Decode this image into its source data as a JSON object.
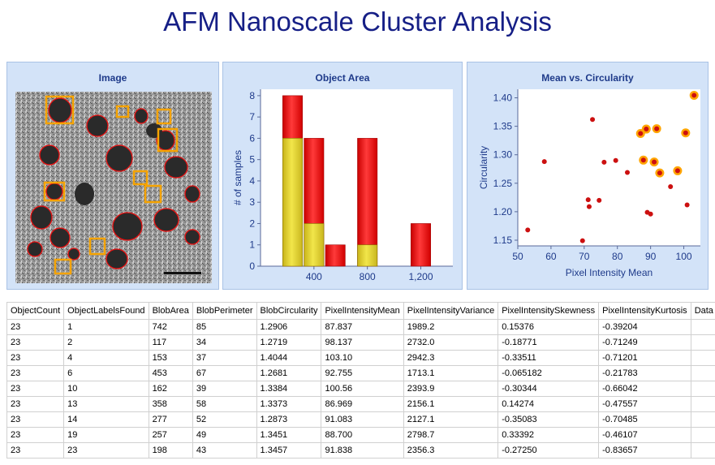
{
  "title": "AFM Nanoscale Cluster Analysis",
  "panels": {
    "image": {
      "title": "Image"
    },
    "object_area": {
      "title": "Object Area"
    },
    "mean_circ": {
      "title": "Mean vs. Circularity"
    }
  },
  "colors": {
    "title": "#161f86",
    "panel_bg": "#d3e3f8",
    "bar_red": "#ff2a2a",
    "bar_yellow": "#e0cf2a",
    "point_red": "#cc1010",
    "highlight": "#ffa500"
  },
  "chart_data": [
    {
      "type": "bar",
      "title": "Object Area",
      "xlabel": "",
      "ylabel": "# of samples",
      "x_ticks": [
        "400",
        "800",
        "1,200"
      ],
      "y_ticks": [
        "0",
        "1",
        "2",
        "3",
        "4",
        "5",
        "6",
        "7",
        "8"
      ],
      "ylim": [
        0,
        8.3
      ],
      "xlim": [
        0,
        1440
      ],
      "bin_width": 160,
      "bins": [
        {
          "center": 240,
          "total": 8,
          "selected": 6
        },
        {
          "center": 400,
          "total": 6,
          "selected": 2
        },
        {
          "center": 560,
          "total": 1,
          "selected": 0
        },
        {
          "center": 800,
          "total": 6,
          "selected": 1
        },
        {
          "center": 1200,
          "total": 2,
          "selected": 0
        }
      ],
      "series": [
        {
          "name": "",
          "stacked_segments": [
            "selected",
            "other"
          ]
        }
      ]
    },
    {
      "type": "scatter",
      "title": "Mean vs. Circularity",
      "xlabel": "Pixel Intensity Mean",
      "ylabel": "Circularity",
      "x_ticks": [
        "50",
        "60",
        "70",
        "80",
        "90",
        "100"
      ],
      "y_ticks": [
        "1.15",
        "1.20",
        "1.25",
        "1.30",
        "1.35",
        "1.40"
      ],
      "xlim": [
        50,
        105
      ],
      "ylim": [
        1.14,
        1.415
      ],
      "points": [
        {
          "x": 53.0,
          "y": 1.168,
          "hl": false
        },
        {
          "x": 58.0,
          "y": 1.288,
          "hl": false
        },
        {
          "x": 69.5,
          "y": 1.149,
          "hl": false
        },
        {
          "x": 71.2,
          "y": 1.221,
          "hl": false
        },
        {
          "x": 71.5,
          "y": 1.209,
          "hl": false
        },
        {
          "x": 72.5,
          "y": 1.362,
          "hl": false
        },
        {
          "x": 74.5,
          "y": 1.22,
          "hl": false
        },
        {
          "x": 76.0,
          "y": 1.287,
          "hl": false
        },
        {
          "x": 79.5,
          "y": 1.29,
          "hl": false
        },
        {
          "x": 83.0,
          "y": 1.269,
          "hl": false
        },
        {
          "x": 89.0,
          "y": 1.199,
          "hl": false
        },
        {
          "x": 90.0,
          "y": 1.196,
          "hl": false
        },
        {
          "x": 96.0,
          "y": 1.244,
          "hl": false
        },
        {
          "x": 101.0,
          "y": 1.212,
          "hl": false
        },
        {
          "x": 86.969,
          "y": 1.3373,
          "hl": true
        },
        {
          "x": 87.837,
          "y": 1.2906,
          "hl": true
        },
        {
          "x": 88.7,
          "y": 1.3451,
          "hl": true
        },
        {
          "x": 91.083,
          "y": 1.2873,
          "hl": true
        },
        {
          "x": 91.838,
          "y": 1.3457,
          "hl": true
        },
        {
          "x": 92.755,
          "y": 1.2681,
          "hl": true
        },
        {
          "x": 98.137,
          "y": 1.2719,
          "hl": true
        },
        {
          "x": 100.56,
          "y": 1.3384,
          "hl": true
        },
        {
          "x": 103.1,
          "y": 1.4044,
          "hl": true
        }
      ]
    }
  ],
  "table": {
    "headers": [
      "ObjectCount",
      "ObjectLabelsFound",
      "BlobArea",
      "BlobPerimeter",
      "BlobCircularity",
      "PixelIntensityMean",
      "PixelIntensityVariance",
      "PixelIntensitySkewness",
      "PixelIntensityKurtosis",
      "Data"
    ],
    "rows": [
      [
        "23",
        "1",
        "742",
        "85",
        "1.2906",
        "87.837",
        "1989.2",
        "0.15376",
        "-0.39204",
        ""
      ],
      [
        "23",
        "2",
        "117",
        "34",
        "1.2719",
        "98.137",
        "2732.0",
        "-0.18771",
        "-0.71249",
        ""
      ],
      [
        "23",
        "4",
        "153",
        "37",
        "1.4044",
        "103.10",
        "2942.3",
        "-0.33511",
        "-0.71201",
        ""
      ],
      [
        "23",
        "6",
        "453",
        "67",
        "1.2681",
        "92.755",
        "1713.1",
        "-0.065182",
        "-0.21783",
        ""
      ],
      [
        "23",
        "10",
        "162",
        "39",
        "1.3384",
        "100.56",
        "2393.9",
        "-0.30344",
        "-0.66042",
        ""
      ],
      [
        "23",
        "13",
        "358",
        "58",
        "1.3373",
        "86.969",
        "2156.1",
        "0.14274",
        "-0.47557",
        ""
      ],
      [
        "23",
        "14",
        "277",
        "52",
        "1.2873",
        "91.083",
        "2127.1",
        "-0.35083",
        "-0.70485",
        ""
      ],
      [
        "23",
        "19",
        "257",
        "49",
        "1.3451",
        "88.700",
        "2798.7",
        "0.33392",
        "-0.46107",
        ""
      ],
      [
        "23",
        "23",
        "198",
        "43",
        "1.3457",
        "91.838",
        "2356.3",
        "-0.27250",
        "-0.83657",
        ""
      ]
    ]
  }
}
